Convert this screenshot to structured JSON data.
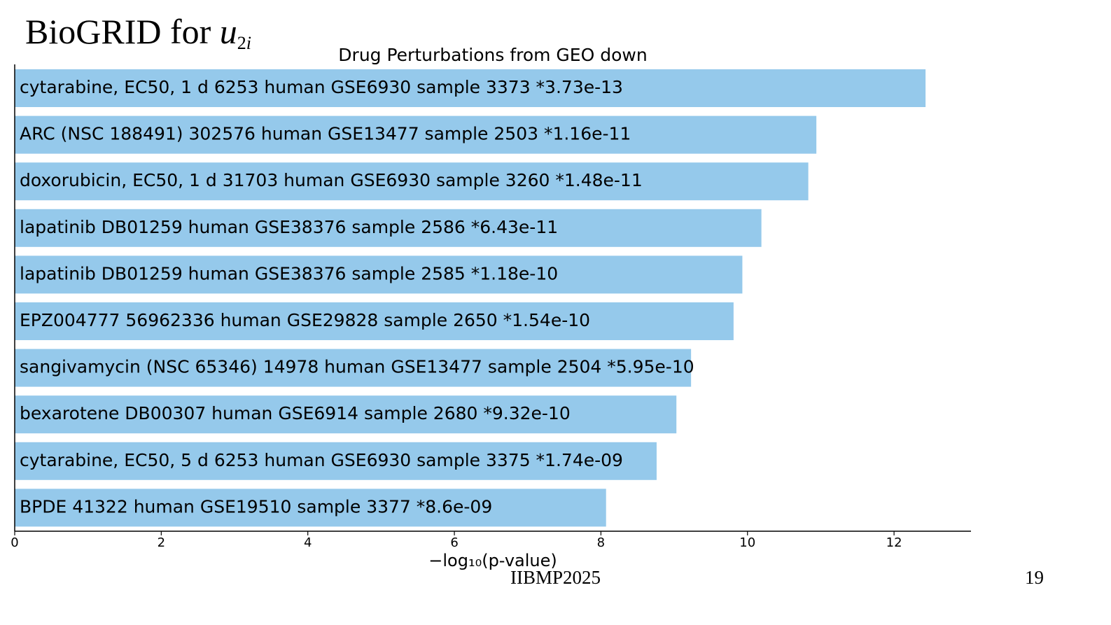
{
  "slide": {
    "title_prefix": "BioGRID for ",
    "title_var": "u",
    "title_sub_num": "2",
    "title_sub_var": "i",
    "footer_center": "IIBMP2025",
    "page_number": "19"
  },
  "chart_data": {
    "type": "bar",
    "orientation": "horizontal",
    "title": "Drug Perturbations from GEO down",
    "xlabel": "−log₁₀(p-value)",
    "ylabel": "",
    "xlim": [
      0,
      13.05
    ],
    "xticks": [
      0,
      2,
      4,
      6,
      8,
      10,
      12
    ],
    "bar_color": "#95c9eb",
    "grid": false,
    "categories": [
      "cytarabine, EC50, 1 d 6253 human GSE6930 sample 3373  *3.73e-13",
      "ARC (NSC 188491) 302576 human GSE13477 sample 2503  *1.16e-11",
      "doxorubicin, EC50, 1 d 31703 human GSE6930 sample 3260  *1.48e-11",
      "lapatinib DB01259 human GSE38376 sample 2586  *6.43e-11",
      "lapatinib DB01259 human GSE38376 sample 2585  *1.18e-10",
      "EPZ004777 56962336 human GSE29828 sample 2650  *1.54e-10",
      "sangivamycin (NSC 65346) 14978 human GSE13477 sample 2504  *5.95e-10",
      "bexarotene DB00307 human GSE6914 sample 2680  *9.32e-10",
      "cytarabine, EC50, 5 d 6253 human GSE6930 sample 3375  *1.74e-09",
      "BPDE 41322 human GSE19510 sample 3377  *8.6e-09"
    ],
    "values": [
      12.43,
      10.94,
      10.83,
      10.19,
      9.93,
      9.81,
      9.23,
      9.03,
      8.76,
      8.07
    ]
  }
}
